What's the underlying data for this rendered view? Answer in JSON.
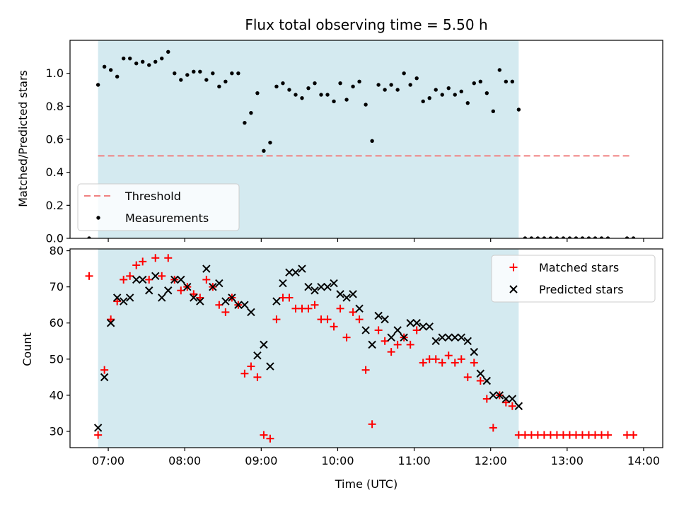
{
  "chart_data": [
    {
      "type": "scatter",
      "title": "Flux total observing time = 5.50 h",
      "ylabel": "Matched/Predicted stars",
      "xlabel": "",
      "xlim": [
        "06:30",
        "14:15"
      ],
      "ylim": [
        0,
        1.2
      ],
      "yticks": [
        0.0,
        0.2,
        0.4,
        0.6,
        0.8,
        1.0
      ],
      "ytick_labels": [
        "0.0",
        "0.2",
        "0.4",
        "0.6",
        "0.8",
        "1.0"
      ],
      "xtick_labels": [],
      "grid": false,
      "legend": {
        "position": "lower-left",
        "entries": [
          "Threshold",
          "Measurements"
        ]
      },
      "shaded_interval": {
        "start": "06:52",
        "end": "12:22",
        "color": "#d4eaf0"
      },
      "threshold": {
        "name": "Threshold",
        "y": 0.5,
        "x_start": "06:52",
        "x_end": "13:50",
        "color": "#f08080"
      },
      "series": [
        {
          "name": "Measurements",
          "color": "#000000",
          "marker": "dot",
          "points": [
            [
              "06:45",
              0.0
            ],
            [
              "06:52",
              0.93
            ],
            [
              "06:57",
              1.04
            ],
            [
              "07:02",
              1.02
            ],
            [
              "07:07",
              0.98
            ],
            [
              "07:12",
              1.09
            ],
            [
              "07:17",
              1.09
            ],
            [
              "07:22",
              1.06
            ],
            [
              "07:27",
              1.07
            ],
            [
              "07:32",
              1.05
            ],
            [
              "07:37",
              1.07
            ],
            [
              "07:42",
              1.09
            ],
            [
              "07:47",
              1.13
            ],
            [
              "07:52",
              1.0
            ],
            [
              "07:57",
              0.96
            ],
            [
              "08:02",
              0.99
            ],
            [
              "08:07",
              1.01
            ],
            [
              "08:12",
              1.01
            ],
            [
              "08:17",
              0.96
            ],
            [
              "08:22",
              1.0
            ],
            [
              "08:27",
              0.92
            ],
            [
              "08:32",
              0.95
            ],
            [
              "08:37",
              1.0
            ],
            [
              "08:42",
              1.0
            ],
            [
              "08:47",
              0.7
            ],
            [
              "08:52",
              0.76
            ],
            [
              "08:57",
              0.88
            ],
            [
              "09:02",
              0.53
            ],
            [
              "09:07",
              0.58
            ],
            [
              "09:12",
              0.92
            ],
            [
              "09:17",
              0.94
            ],
            [
              "09:22",
              0.9
            ],
            [
              "09:27",
              0.87
            ],
            [
              "09:32",
              0.85
            ],
            [
              "09:37",
              0.91
            ],
            [
              "09:42",
              0.94
            ],
            [
              "09:47",
              0.87
            ],
            [
              "09:52",
              0.87
            ],
            [
              "09:57",
              0.83
            ],
            [
              "10:02",
              0.94
            ],
            [
              "10:07",
              0.84
            ],
            [
              "10:12",
              0.92
            ],
            [
              "10:17",
              0.95
            ],
            [
              "10:22",
              0.81
            ],
            [
              "10:27",
              0.59
            ],
            [
              "10:32",
              0.93
            ],
            [
              "10:37",
              0.9
            ],
            [
              "10:42",
              0.93
            ],
            [
              "10:47",
              0.9
            ],
            [
              "10:52",
              1.0
            ],
            [
              "10:57",
              0.93
            ],
            [
              "11:02",
              0.97
            ],
            [
              "11:07",
              0.83
            ],
            [
              "11:12",
              0.85
            ],
            [
              "11:17",
              0.9
            ],
            [
              "11:22",
              0.87
            ],
            [
              "11:27",
              0.91
            ],
            [
              "11:32",
              0.87
            ],
            [
              "11:37",
              0.89
            ],
            [
              "11:42",
              0.82
            ],
            [
              "11:47",
              0.94
            ],
            [
              "11:52",
              0.95
            ],
            [
              "11:57",
              0.88
            ],
            [
              "12:02",
              0.77
            ],
            [
              "12:07",
              1.02
            ],
            [
              "12:12",
              0.95
            ],
            [
              "12:17",
              0.95
            ],
            [
              "12:22",
              0.78
            ],
            [
              "12:27",
              0.0
            ],
            [
              "12:32",
              0.0
            ],
            [
              "12:37",
              0.0
            ],
            [
              "12:42",
              0.0
            ],
            [
              "12:47",
              0.0
            ],
            [
              "12:52",
              0.0
            ],
            [
              "12:57",
              0.0
            ],
            [
              "13:02",
              0.0
            ],
            [
              "13:07",
              0.0
            ],
            [
              "13:12",
              0.0
            ],
            [
              "13:17",
              0.0
            ],
            [
              "13:22",
              0.0
            ],
            [
              "13:27",
              0.0
            ],
            [
              "13:32",
              0.0
            ],
            [
              "13:47",
              0.0
            ],
            [
              "13:52",
              0.0
            ]
          ]
        }
      ]
    },
    {
      "type": "scatter",
      "title": "",
      "xlabel": "Time (UTC)",
      "ylabel": "Count",
      "xlim": [
        "06:30",
        "14:15"
      ],
      "ylim": [
        25.5,
        80.5
      ],
      "yticks": [
        30,
        40,
        50,
        60,
        70,
        80
      ],
      "ytick_labels": [
        "30",
        "40",
        "50",
        "60",
        "70",
        "80"
      ],
      "xtick_labels": [
        "07:00",
        "08:00",
        "09:00",
        "10:00",
        "11:00",
        "12:00",
        "13:00",
        "14:00"
      ],
      "grid": false,
      "legend": {
        "position": "top-right",
        "entries": [
          "Matched stars",
          "Predicted stars"
        ]
      },
      "shaded_interval": {
        "start": "06:52",
        "end": "12:22",
        "color": "#d4eaf0"
      },
      "series": [
        {
          "name": "Matched stars",
          "color": "#ff0000",
          "marker": "plus",
          "points": [
            [
              "06:45",
              73
            ],
            [
              "06:52",
              29
            ],
            [
              "06:57",
              47
            ],
            [
              "07:02",
              61
            ],
            [
              "07:07",
              66
            ],
            [
              "07:12",
              72
            ],
            [
              "07:17",
              73
            ],
            [
              "07:22",
              76
            ],
            [
              "07:27",
              77
            ],
            [
              "07:32",
              72
            ],
            [
              "07:37",
              78
            ],
            [
              "07:42",
              73
            ],
            [
              "07:47",
              78
            ],
            [
              "07:52",
              72
            ],
            [
              "07:57",
              69
            ],
            [
              "08:02",
              70
            ],
            [
              "08:07",
              68
            ],
            [
              "08:12",
              67
            ],
            [
              "08:17",
              72
            ],
            [
              "08:22",
              70
            ],
            [
              "08:27",
              65
            ],
            [
              "08:32",
              63
            ],
            [
              "08:37",
              67
            ],
            [
              "08:42",
              65
            ],
            [
              "08:47",
              46
            ],
            [
              "08:52",
              48
            ],
            [
              "08:57",
              45
            ],
            [
              "09:02",
              29
            ],
            [
              "09:07",
              28
            ],
            [
              "09:12",
              61
            ],
            [
              "09:17",
              67
            ],
            [
              "09:22",
              67
            ],
            [
              "09:27",
              64
            ],
            [
              "09:32",
              64
            ],
            [
              "09:37",
              64
            ],
            [
              "09:42",
              65
            ],
            [
              "09:47",
              61
            ],
            [
              "09:52",
              61
            ],
            [
              "09:57",
              59
            ],
            [
              "10:02",
              64
            ],
            [
              "10:07",
              56
            ],
            [
              "10:12",
              63
            ],
            [
              "10:17",
              61
            ],
            [
              "10:22",
              47
            ],
            [
              "10:27",
              32
            ],
            [
              "10:32",
              58
            ],
            [
              "10:37",
              55
            ],
            [
              "10:42",
              52
            ],
            [
              "10:47",
              54
            ],
            [
              "10:52",
              56
            ],
            [
              "10:57",
              54
            ],
            [
              "11:02",
              58
            ],
            [
              "11:07",
              49
            ],
            [
              "11:12",
              50
            ],
            [
              "11:17",
              50
            ],
            [
              "11:22",
              49
            ],
            [
              "11:27",
              51
            ],
            [
              "11:32",
              49
            ],
            [
              "11:37",
              50
            ],
            [
              "11:42",
              45
            ],
            [
              "11:47",
              49
            ],
            [
              "11:52",
              44
            ],
            [
              "11:57",
              39
            ],
            [
              "12:02",
              31
            ],
            [
              "12:07",
              40
            ],
            [
              "12:12",
              38
            ],
            [
              "12:17",
              37
            ],
            [
              "12:22",
              29
            ],
            [
              "12:27",
              29
            ],
            [
              "12:32",
              29
            ],
            [
              "12:37",
              29
            ],
            [
              "12:42",
              29
            ],
            [
              "12:47",
              29
            ],
            [
              "12:52",
              29
            ],
            [
              "12:57",
              29
            ],
            [
              "13:02",
              29
            ],
            [
              "13:07",
              29
            ],
            [
              "13:12",
              29
            ],
            [
              "13:17",
              29
            ],
            [
              "13:22",
              29
            ],
            [
              "13:27",
              29
            ],
            [
              "13:32",
              29
            ],
            [
              "13:47",
              29
            ],
            [
              "13:52",
              29
            ]
          ]
        },
        {
          "name": "Predicted stars",
          "color": "#000000",
          "marker": "cross",
          "points": [
            [
              "06:52",
              31
            ],
            [
              "06:57",
              45
            ],
            [
              "07:02",
              60
            ],
            [
              "07:07",
              67
            ],
            [
              "07:12",
              66
            ],
            [
              "07:17",
              67
            ],
            [
              "07:22",
              72
            ],
            [
              "07:27",
              72
            ],
            [
              "07:32",
              69
            ],
            [
              "07:37",
              73
            ],
            [
              "07:42",
              67
            ],
            [
              "07:47",
              69
            ],
            [
              "07:52",
              72
            ],
            [
              "07:57",
              72
            ],
            [
              "08:02",
              70
            ],
            [
              "08:07",
              67
            ],
            [
              "08:12",
              66
            ],
            [
              "08:17",
              75
            ],
            [
              "08:22",
              70
            ],
            [
              "08:27",
              71
            ],
            [
              "08:32",
              66
            ],
            [
              "08:37",
              67
            ],
            [
              "08:42",
              65
            ],
            [
              "08:47",
              65
            ],
            [
              "08:52",
              63
            ],
            [
              "08:57",
              51
            ],
            [
              "09:02",
              54
            ],
            [
              "09:07",
              48
            ],
            [
              "09:12",
              66
            ],
            [
              "09:17",
              71
            ],
            [
              "09:22",
              74
            ],
            [
              "09:27",
              74
            ],
            [
              "09:32",
              75
            ],
            [
              "09:37",
              70
            ],
            [
              "09:42",
              69
            ],
            [
              "09:47",
              70
            ],
            [
              "09:52",
              70
            ],
            [
              "09:57",
              71
            ],
            [
              "10:02",
              68
            ],
            [
              "10:07",
              67
            ],
            [
              "10:12",
              68
            ],
            [
              "10:17",
              64
            ],
            [
              "10:22",
              58
            ],
            [
              "10:27",
              54
            ],
            [
              "10:32",
              62
            ],
            [
              "10:37",
              61
            ],
            [
              "10:42",
              56
            ],
            [
              "10:47",
              58
            ],
            [
              "10:52",
              56
            ],
            [
              "10:57",
              60
            ],
            [
              "11:02",
              60
            ],
            [
              "11:07",
              59
            ],
            [
              "11:12",
              59
            ],
            [
              "11:17",
              55
            ],
            [
              "11:22",
              56
            ],
            [
              "11:27",
              56
            ],
            [
              "11:32",
              56
            ],
            [
              "11:37",
              56
            ],
            [
              "11:42",
              55
            ],
            [
              "11:47",
              52
            ],
            [
              "11:52",
              46
            ],
            [
              "11:57",
              44
            ],
            [
              "12:02",
              40
            ],
            [
              "12:07",
              40
            ],
            [
              "12:12",
              39
            ],
            [
              "12:17",
              39
            ],
            [
              "12:22",
              37
            ]
          ]
        }
      ]
    }
  ]
}
